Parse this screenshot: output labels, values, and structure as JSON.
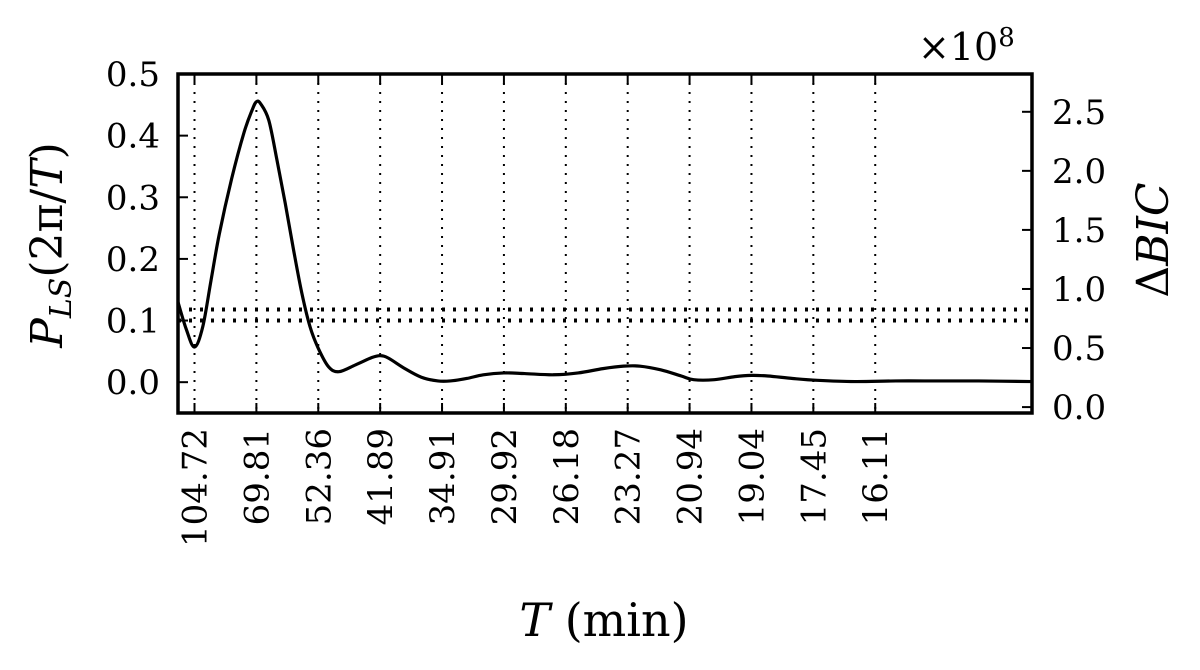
{
  "chart_data": {
    "type": "line",
    "xlabel": "T (min)",
    "ylabel_left": "P_LS(2π/T)",
    "ylabel_right": "ΔBIC",
    "right_axis_multiplier": "×10⁸",
    "x_axis_note": "x positions are angular frequency ω = 2π/T; tick labels show the period T in minutes",
    "xlim_omega": [
      0.052,
      0.466
    ],
    "ylim_left": [
      -0.05,
      0.5
    ],
    "ylim_right": [
      -0.05,
      2.82
    ],
    "grid": "vertical dotted lines at x ticks",
    "x_ticks": [
      {
        "label": "104.72",
        "omega": 0.06
      },
      {
        "label": "69.81",
        "omega": 0.09
      },
      {
        "label": "52.36",
        "omega": 0.12
      },
      {
        "label": "41.89",
        "omega": 0.15
      },
      {
        "label": "34.91",
        "omega": 0.18
      },
      {
        "label": "29.92",
        "omega": 0.21
      },
      {
        "label": "26.18",
        "omega": 0.24
      },
      {
        "label": "23.27",
        "omega": 0.27
      },
      {
        "label": "20.94",
        "omega": 0.3
      },
      {
        "label": "19.04",
        "omega": 0.33
      },
      {
        "label": "17.45",
        "omega": 0.36
      },
      {
        "label": "16.11",
        "omega": 0.39
      }
    ],
    "y_ticks_left": [
      "0.0",
      "0.1",
      "0.2",
      "0.3",
      "0.4",
      "0.5"
    ],
    "y_ticks_right": [
      "0.0",
      "0.5",
      "1.0",
      "1.5",
      "2.0",
      "2.5"
    ],
    "threshold_lines": [
      0.1,
      0.118
    ],
    "series": [
      {
        "omega": [
          0.052,
          0.056,
          0.06,
          0.064,
          0.068,
          0.072,
          0.078,
          0.084,
          0.088,
          0.09,
          0.092,
          0.096,
          0.1,
          0.104,
          0.108,
          0.112,
          0.116,
          0.12,
          0.125,
          0.13,
          0.138,
          0.146,
          0.15,
          0.154,
          0.162,
          0.17,
          0.178,
          0.184,
          0.192,
          0.2,
          0.21,
          0.22,
          0.234,
          0.246,
          0.258,
          0.268,
          0.276,
          0.286,
          0.296,
          0.302,
          0.312,
          0.322,
          0.33,
          0.338,
          0.35,
          0.362,
          0.38,
          0.4,
          0.42,
          0.44,
          0.466
        ],
        "values": [
          0.13,
          0.086,
          0.057,
          0.09,
          0.165,
          0.24,
          0.33,
          0.405,
          0.442,
          0.455,
          0.452,
          0.425,
          0.36,
          0.29,
          0.215,
          0.145,
          0.09,
          0.055,
          0.025,
          0.017,
          0.028,
          0.04,
          0.043,
          0.039,
          0.022,
          0.008,
          0.002,
          0.002,
          0.006,
          0.012,
          0.015,
          0.014,
          0.012,
          0.015,
          0.022,
          0.026,
          0.026,
          0.02,
          0.01,
          0.004,
          0.004,
          0.009,
          0.011,
          0.01,
          0.006,
          0.003,
          0.001,
          0.002,
          0.002,
          0.002,
          0.001
        ]
      }
    ]
  }
}
